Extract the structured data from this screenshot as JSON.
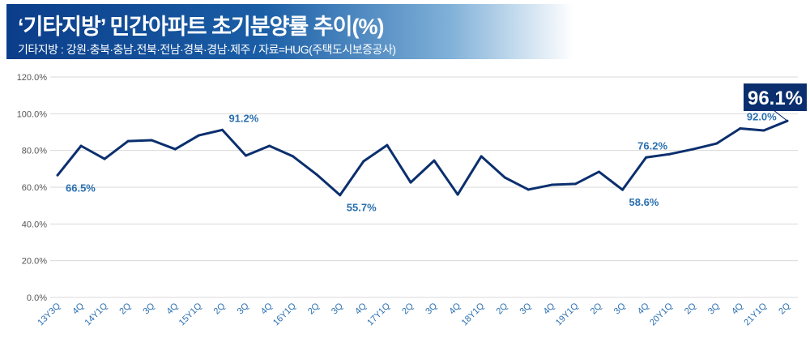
{
  "header": {
    "title": "‘기타지방’ 민간아파트 초기분양률 추이(%)",
    "subtitle": "기타지방 : 강원·충북·충남·전북·전남·경북·경남·제주 / 자료=HUG(주택도시보증공사)"
  },
  "colors": {
    "line": "#0b2f6e",
    "label": "#2a6fb0",
    "callout_bg": "#0b2f6e"
  },
  "chart_data": {
    "type": "line",
    "title": "‘기타지방’ 민간아파트 초기분양률 추이(%)",
    "xlabel": "",
    "ylabel": "",
    "ylim": [
      0,
      120
    ],
    "yticks": [
      "0.0%",
      "20.0%",
      "40.0%",
      "60.0%",
      "80.0%",
      "100.0%",
      "120.0%"
    ],
    "grid": true,
    "categories": [
      "13Y3Q",
      "4Q",
      "14Y1Q",
      "2Q",
      "3Q",
      "4Q",
      "15Y1Q",
      "2Q",
      "3Q",
      "4Q",
      "16Y1Q",
      "2Q",
      "3Q",
      "4Q",
      "17Y1Q",
      "2Q",
      "3Q",
      "4Q",
      "18Y1Q",
      "2Q",
      "3Q",
      "4Q",
      "19Y1Q",
      "2Q",
      "3Q",
      "4Q",
      "20Y1Q",
      "2Q",
      "3Q",
      "4Q",
      "21Y1Q",
      "2Q"
    ],
    "series": [
      {
        "name": "초기분양률",
        "values": [
          66.5,
          82.5,
          75.4,
          85.1,
          85.6,
          80.7,
          88.2,
          91.2,
          77.2,
          82.5,
          76.8,
          67.0,
          55.7,
          74.1,
          82.9,
          62.6,
          74.5,
          56.0,
          76.8,
          65.3,
          58.7,
          61.3,
          61.8,
          68.4,
          58.6,
          76.2,
          78.0,
          80.7,
          83.8,
          92.0,
          90.9,
          96.1
        ]
      }
    ],
    "annotations": [
      {
        "index": 0,
        "text": "66.5%",
        "pos": "below"
      },
      {
        "index": 7,
        "text": "91.2%",
        "pos": "above"
      },
      {
        "index": 12,
        "text": "55.7%",
        "pos": "below"
      },
      {
        "index": 24,
        "text": "58.6%",
        "pos": "below"
      },
      {
        "index": 25,
        "text": "76.2%",
        "pos": "above"
      },
      {
        "index": 29,
        "text": "92.0%",
        "pos": "above"
      },
      {
        "index": 31,
        "text": "96.1%",
        "pos": "callout"
      }
    ]
  }
}
